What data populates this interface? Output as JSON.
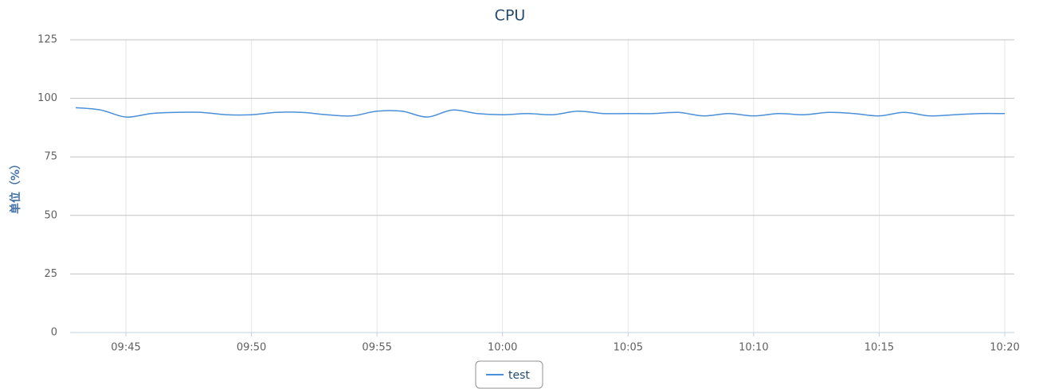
{
  "chart_data": {
    "type": "line",
    "title": "CPU",
    "ylabel": "单位（%）",
    "x": [
      "09:43",
      "09:44",
      "09:45",
      "09:46",
      "09:47",
      "09:48",
      "09:49",
      "09:50",
      "09:51",
      "09:52",
      "09:53",
      "09:54",
      "09:55",
      "09:56",
      "09:57",
      "09:58",
      "09:59",
      "10:00",
      "10:01",
      "10:02",
      "10:03",
      "10:04",
      "10:05",
      "10:06",
      "10:07",
      "10:08",
      "10:09",
      "10:10",
      "10:11",
      "10:12",
      "10:13",
      "10:14",
      "10:15",
      "10:16",
      "10:17",
      "10:18",
      "10:19",
      "10:20"
    ],
    "series": [
      {
        "name": "test",
        "color": "#4a8fd9",
        "values": [
          96,
          95,
          92,
          93.5,
          94,
          94,
          93,
          93,
          94,
          94,
          93,
          92.5,
          94.5,
          94.5,
          92,
          95,
          93.5,
          93,
          93.5,
          93,
          94.5,
          93.5,
          93.5,
          93.5,
          94,
          92.5,
          93.5,
          92.5,
          93.5,
          93,
          94,
          93.5,
          92.5,
          94,
          92.5,
          93,
          93.5,
          93.5
        ]
      }
    ],
    "xlim": [
      "09:43",
      "10:20"
    ],
    "xticks": [
      "09:45",
      "09:50",
      "09:55",
      "10:00",
      "10:05",
      "10:10",
      "10:15",
      "10:20"
    ],
    "ylim": [
      0,
      125
    ],
    "yticks": [
      0,
      25,
      50,
      75,
      100,
      125
    ],
    "grid": true,
    "legend": "bottom"
  }
}
